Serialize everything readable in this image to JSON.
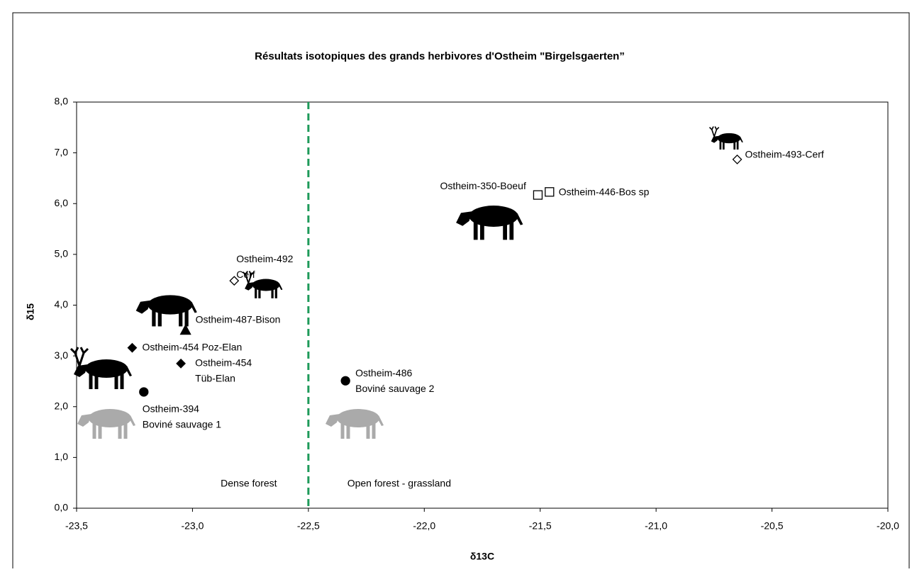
{
  "chart_data": {
    "type": "scatter",
    "title": "Résultats isotopiques des grands herbivores d'Ostheim \"Birgelsgaerten”",
    "x_label": "δ13C",
    "y_label": "δ15",
    "xlim": [
      -23.5,
      -20.0
    ],
    "ylim": [
      0,
      8
    ],
    "xticks": [
      {
        "value": -23.5,
        "label": "-23,5"
      },
      {
        "value": -23.0,
        "label": "-23,0"
      },
      {
        "value": -22.5,
        "label": "-22,5"
      },
      {
        "value": -22.0,
        "label": "-22,0"
      },
      {
        "value": -21.5,
        "label": "-21,5"
      },
      {
        "value": -21.0,
        "label": "-21,0"
      },
      {
        "value": -20.5,
        "label": "-20,5"
      },
      {
        "value": -20.0,
        "label": "-20,0"
      }
    ],
    "yticks": [
      {
        "value": 0,
        "label": "0,0"
      },
      {
        "value": 1,
        "label": "1,0"
      },
      {
        "value": 2,
        "label": "2,0"
      },
      {
        "value": 3,
        "label": "3,0"
      },
      {
        "value": 4,
        "label": "4,0"
      },
      {
        "value": 5,
        "label": "5,0"
      },
      {
        "value": 6,
        "label": "6,0"
      },
      {
        "value": 7,
        "label": "7,0"
      },
      {
        "value": 8,
        "label": "8,0"
      }
    ],
    "divider": {
      "x": -22.5,
      "color": "#1e9a5a",
      "left_label": "Dense forest",
      "right_label": "Open forest - grassland"
    },
    "points": [
      {
        "label": [
          "Ostheim-394",
          "Boviné sauvage 1"
        ],
        "x": -23.21,
        "y": 2.29,
        "marker": "circle",
        "filled": true
      },
      {
        "label": [
          "Ostheim-454 Poz-Elan"
        ],
        "x": -23.26,
        "y": 3.16,
        "marker": "diamond",
        "filled": true
      },
      {
        "label": [
          "Ostheim-454",
          "Tüb-Elan"
        ],
        "x": -23.05,
        "y": 2.85,
        "marker": "diamond",
        "filled": true
      },
      {
        "label": [
          "Ostheim-487-Bison"
        ],
        "x": -23.03,
        "y": 3.51,
        "marker": "triangle",
        "filled": true
      },
      {
        "label": [
          "Ostheim-492",
          "Cerf"
        ],
        "x": -22.82,
        "y": 4.48,
        "marker": "diamond",
        "filled": false
      },
      {
        "label": [
          "Ostheim-486",
          "Boviné sauvage 2"
        ],
        "x": -22.34,
        "y": 2.51,
        "marker": "circle",
        "filled": true
      },
      {
        "label": [
          "Ostheim-350-Boeuf"
        ],
        "x": -21.51,
        "y": 6.17,
        "marker": "square",
        "filled": false
      },
      {
        "label": [
          "Ostheim-446-Bos sp"
        ],
        "x": -21.46,
        "y": 6.23,
        "marker": "square",
        "filled": false
      },
      {
        "label": [
          "Ostheim-493-Cerf"
        ],
        "x": -20.65,
        "y": 6.87,
        "marker": "diamond",
        "filled": false
      }
    ]
  }
}
